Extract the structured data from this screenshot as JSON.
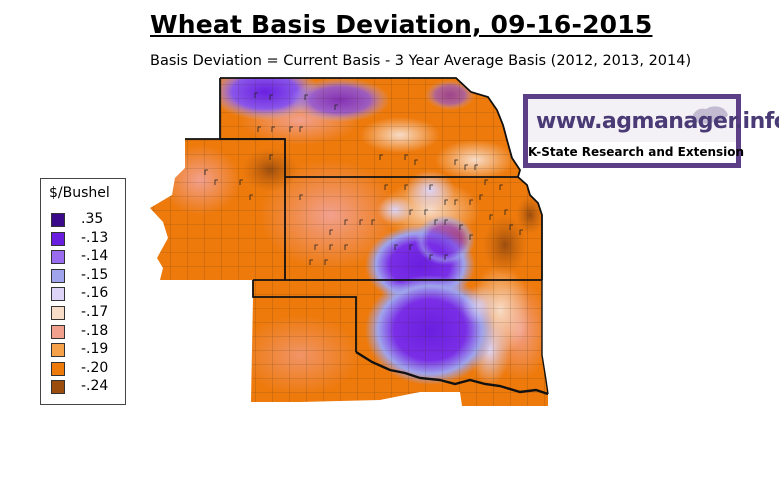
{
  "title": "Wheat Basis Deviation, 09-16-2015",
  "subtitle": "Basis Deviation = Current Basis - 3 Year Average Basis (2012, 2013, 2014)",
  "legend": {
    "title": "$/Bushel",
    "items": [
      {
        "label": ".35",
        "color": "#3b0a8a"
      },
      {
        "label": "-.13",
        "color": "#6a1fe0"
      },
      {
        "label": "-.14",
        "color": "#9a6df0"
      },
      {
        "label": "-.15",
        "color": "#9fa4ec"
      },
      {
        "label": "-.16",
        "color": "#ddd4f7"
      },
      {
        "label": "-.17",
        "color": "#f7dcc8"
      },
      {
        "label": "-.18",
        "color": "#f2a08e"
      },
      {
        "label": "-.19",
        "color": "#f5a24a"
      },
      {
        "label": "-.20",
        "color": "#ee7a0c"
      },
      {
        "label": "-.24",
        "color": "#9b4d0e"
      }
    ]
  },
  "logo": {
    "url_text": "www.agmanager.info",
    "subtitle": "K-State Research and Extension",
    "icon": "wildcat-icon",
    "frame_color": "#5c3f86"
  },
  "map": {
    "regions": [
      "Nebraska",
      "Colorado",
      "Kansas",
      "Oklahoma",
      "Texas"
    ]
  }
}
